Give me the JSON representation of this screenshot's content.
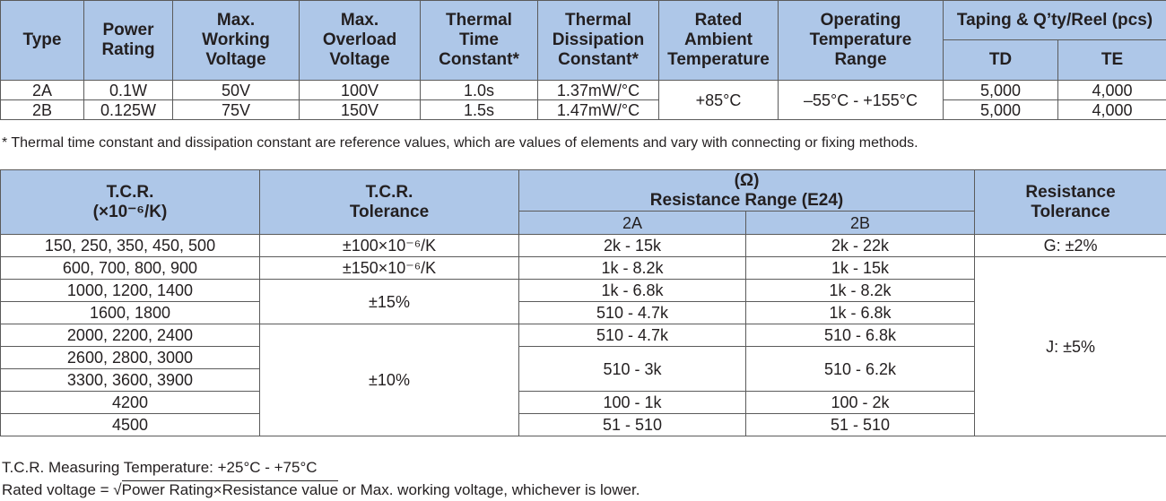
{
  "table1": {
    "headers": {
      "type": "Type",
      "power": "Power\nRating",
      "working_voltage": "Max.\nWorking\nVoltage",
      "overload_voltage": "Max.\nOverload\nVoltage",
      "thermal_time": "Thermal\nTime\nConstant*",
      "thermal_dissipation": "Thermal\nDissipation\nConstant*",
      "rated_ambient": "Rated\nAmbient\nTemperature",
      "operating_temp": "Operating\nTemperature\nRange",
      "taping": "Taping & Q’ty/Reel (pcs)",
      "td": "TD",
      "te": "TE"
    },
    "rows": [
      {
        "type": "2A",
        "power": "0.1W",
        "working": "50V",
        "overload": "100V",
        "time": "1.0s",
        "dissipation": "1.37mW/°C",
        "td": "5,000",
        "te": "4,000"
      },
      {
        "type": "2B",
        "power": "0.125W",
        "working": "75V",
        "overload": "150V",
        "time": "1.5s",
        "dissipation": "1.47mW/°C",
        "td": "5,000",
        "te": "4,000"
      }
    ],
    "rated_ambient_value": "+85°C",
    "operating_range_value": "–55°C - +155°C"
  },
  "note_thermal": "* Thermal time constant and dissipation constant are reference values, which are values of elements and vary with connecting or fixing methods.",
  "table2": {
    "headers": {
      "tcr": "T.C.R.\n(×10⁻⁶/K)",
      "tcr_tolerance": "T.C.R.\nTolerance",
      "resistance_range": "(Ω)\nResistance Range (E24)",
      "col_2a": "2A",
      "col_2b": "2B",
      "resistance_tolerance": "Resistance\nTolerance"
    },
    "rows": [
      {
        "tcr": "150, 250, 350, 450, 500",
        "r2a": "2k - 15k",
        "r2b": "2k - 22k"
      },
      {
        "tcr": "600, 700, 800, 900",
        "r2a": "1k - 8.2k",
        "r2b": "1k - 15k"
      },
      {
        "tcr": "1000, 1200, 1400",
        "r2a": "1k - 6.8k",
        "r2b": "1k - 8.2k"
      },
      {
        "tcr": "1600, 1800",
        "r2a": "510 - 4.7k",
        "r2b": "1k - 6.8k"
      },
      {
        "tcr": "2000, 2200, 2400",
        "r2a": "510 - 4.7k",
        "r2b": "510 - 6.8k"
      },
      {
        "tcr": "2600, 2800, 3000",
        "r2a": "510 - 3k",
        "r2b": "510 - 6.2k"
      },
      {
        "tcr": "3300, 3600, 3900"
      },
      {
        "tcr": "4200",
        "r2a": "100 - 1k",
        "r2b": "100 - 2k"
      },
      {
        "tcr": "4500",
        "r2a": "51 - 510",
        "r2b": "51 - 510"
      }
    ],
    "tolerances": {
      "t100": "±100×10⁻⁶/K",
      "t150": "±150×10⁻⁶/K",
      "t15": "±15%",
      "t10": "±10%"
    },
    "resistance_tolerances": {
      "g": "G: ±2%",
      "j": "J: ±5%"
    }
  },
  "note_tcr_temp": "T.C.R. Measuring Temperature: +25°C - +75°C",
  "note_rated": {
    "prefix": "Rated voltage = ",
    "sqrt_symbol": "√",
    "sqrt_body": "Power Rating×Resistance value",
    "suffix": " or Max. working voltage, whichever is lower."
  }
}
